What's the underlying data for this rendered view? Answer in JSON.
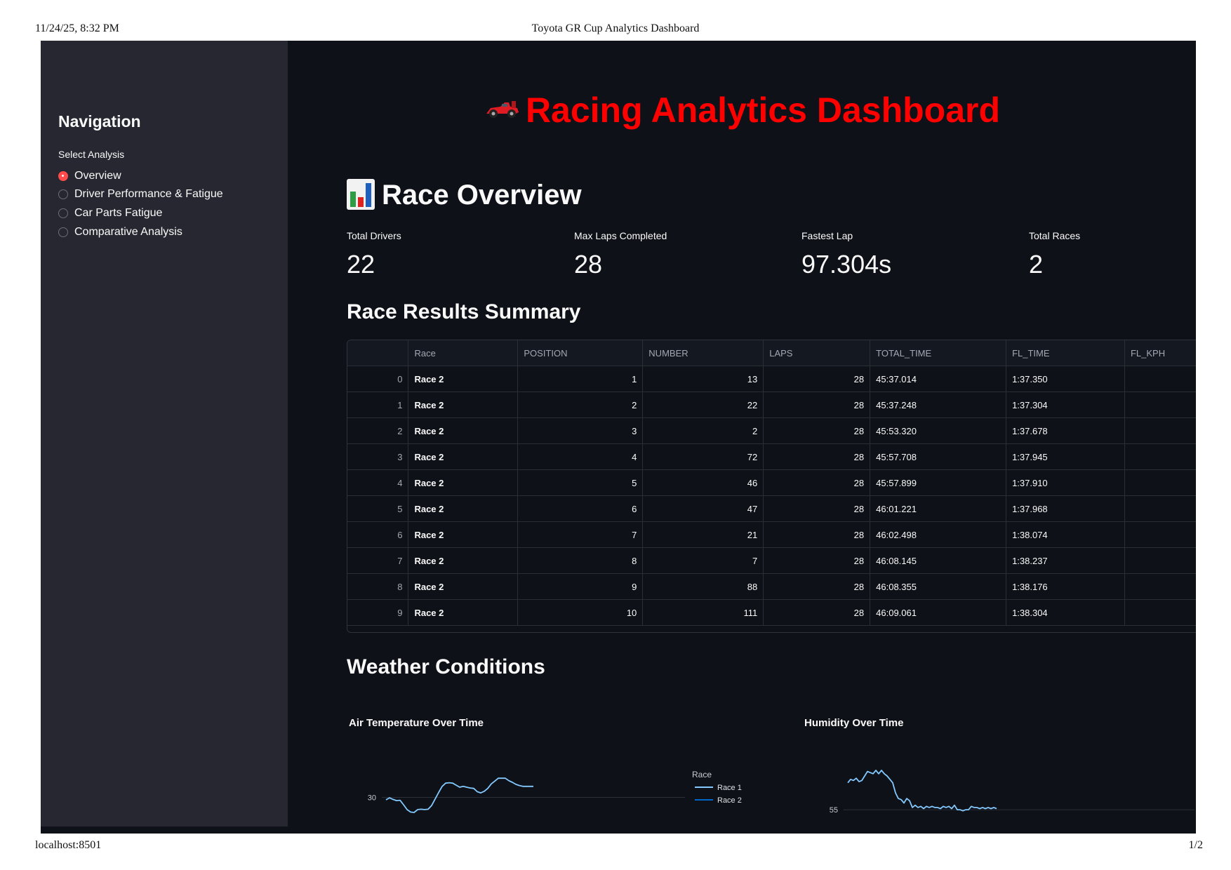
{
  "print": {
    "date": "11/24/25, 8:32 PM",
    "title": "Toyota GR Cup Analytics Dashboard",
    "url": "localhost:8501",
    "page": "1/2"
  },
  "colors": {
    "accent": "#ff4b4b",
    "hero": "#ff0000",
    "app_bg": "#0e1117",
    "sidebar_bg": "#262730"
  },
  "sidebar": {
    "title": "Navigation",
    "select_label": "Select Analysis",
    "options": [
      {
        "label": "Overview",
        "selected": true
      },
      {
        "label": "Driver Performance & Fatigue",
        "selected": false
      },
      {
        "label": "Car Parts Fatigue",
        "selected": false
      },
      {
        "label": "Comparative Analysis",
        "selected": false
      }
    ]
  },
  "main": {
    "hero_icon": "race-car-icon",
    "hero_title": "Racing Analytics Dashboard",
    "overview_icon": "bar-chart-icon",
    "overview_title": "Race Overview",
    "metrics": [
      {
        "label": "Total Drivers",
        "value": "22"
      },
      {
        "label": "Max Laps Completed",
        "value": "28"
      },
      {
        "label": "Fastest Lap",
        "value": "97.304s"
      },
      {
        "label": "Total Races",
        "value": "2"
      }
    ],
    "results_title": "Race Results Summary",
    "weather_title": "Weather Conditions"
  },
  "table": {
    "columns": [
      "",
      "Race",
      "POSITION",
      "NUMBER",
      "LAPS",
      "TOTAL_TIME",
      "FL_TIME",
      "FL_KPH"
    ],
    "rows": [
      [
        "0",
        "Race 2",
        "1",
        "13",
        "28",
        "45:37.014",
        "1:37.350",
        ""
      ],
      [
        "1",
        "Race 2",
        "2",
        "22",
        "28",
        "45:37.248",
        "1:37.304",
        ""
      ],
      [
        "2",
        "Race 2",
        "3",
        "2",
        "28",
        "45:53.320",
        "1:37.678",
        ""
      ],
      [
        "3",
        "Race 2",
        "4",
        "72",
        "28",
        "45:57.708",
        "1:37.945",
        ""
      ],
      [
        "4",
        "Race 2",
        "5",
        "46",
        "28",
        "45:57.899",
        "1:37.910",
        ""
      ],
      [
        "5",
        "Race 2",
        "6",
        "47",
        "28",
        "46:01.221",
        "1:37.968",
        ""
      ],
      [
        "6",
        "Race 2",
        "7",
        "21",
        "28",
        "46:02.498",
        "1:38.074",
        ""
      ],
      [
        "7",
        "Race 2",
        "8",
        "7",
        "28",
        "46:08.145",
        "1:38.237",
        ""
      ],
      [
        "8",
        "Race 2",
        "9",
        "88",
        "28",
        "46:08.355",
        "1:38.176",
        ""
      ],
      [
        "9",
        "Race 2",
        "10",
        "111",
        "28",
        "46:09.061",
        "1:38.304",
        ""
      ]
    ]
  },
  "chart_data": [
    {
      "type": "line",
      "title": "Air Temperature Over Time",
      "xlabel": "",
      "ylabel": "",
      "yticks": [
        30
      ],
      "ylim": [
        29.2,
        30.8
      ],
      "legend_title": "Race",
      "legend_position": "right",
      "series": [
        {
          "name": "Race 1",
          "color": "#83c9ff",
          "x": [
            0,
            1,
            2,
            3,
            4,
            5,
            6,
            7,
            8,
            9,
            10,
            11,
            12,
            13,
            14,
            15,
            16,
            17,
            18,
            19,
            20,
            21,
            22,
            23,
            24,
            25,
            26,
            27,
            28,
            29,
            30,
            31,
            32,
            33,
            34,
            35,
            36,
            37,
            38,
            39,
            40,
            41,
            42
          ],
          "y": [
            29.94,
            29.99,
            29.95,
            29.92,
            29.93,
            29.82,
            29.7,
            29.64,
            29.63,
            29.7,
            29.71,
            29.7,
            29.71,
            29.8,
            29.96,
            30.12,
            30.27,
            30.35,
            30.36,
            30.35,
            30.3,
            30.25,
            30.27,
            30.25,
            30.23,
            30.22,
            30.14,
            30.11,
            30.15,
            30.22,
            30.33,
            30.4,
            30.47,
            30.47,
            30.47,
            30.41,
            30.37,
            30.32,
            30.29,
            30.27,
            30.27,
            30.27,
            30.27
          ]
        },
        {
          "name": "Race 2",
          "color": "#0068c9",
          "x": [],
          "y": []
        }
      ]
    },
    {
      "type": "line",
      "title": "Humidity Over Time",
      "xlabel": "",
      "ylabel": "",
      "yticks": [
        55
      ],
      "ylim": [
        53.2,
        59.0
      ],
      "legend_position": "right",
      "series": [
        {
          "name": "Race 1",
          "color": "#83c9ff",
          "x": [
            0,
            1,
            2,
            3,
            4,
            5,
            6,
            7,
            8,
            9,
            10,
            11,
            12,
            13,
            14,
            15,
            16,
            17,
            18,
            19,
            20,
            21,
            22,
            23,
            24,
            25,
            26,
            27,
            28,
            29,
            30,
            31,
            32,
            33,
            34,
            35,
            36,
            37,
            38,
            39,
            40,
            41,
            42,
            43,
            44,
            45,
            46,
            47,
            48,
            49,
            50,
            51,
            52,
            53
          ],
          "y": [
            57.4,
            57.7,
            57.6,
            57.8,
            57.5,
            57.6,
            58.0,
            58.4,
            58.3,
            58.2,
            58.5,
            58.2,
            58.5,
            58.2,
            58.0,
            57.7,
            57.4,
            56.5,
            56.0,
            55.9,
            55.6,
            56.0,
            55.8,
            55.2,
            55.4,
            55.2,
            55.3,
            55.1,
            55.3,
            55.2,
            55.3,
            55.2,
            55.2,
            55.1,
            55.3,
            55.2,
            55.3,
            55.1,
            55.4,
            55.0,
            55.0,
            54.9,
            55.0,
            55.0,
            55.3,
            55.2,
            55.2,
            55.1,
            55.2,
            55.1,
            55.2,
            55.1,
            55.2,
            55.1
          ]
        }
      ]
    }
  ]
}
